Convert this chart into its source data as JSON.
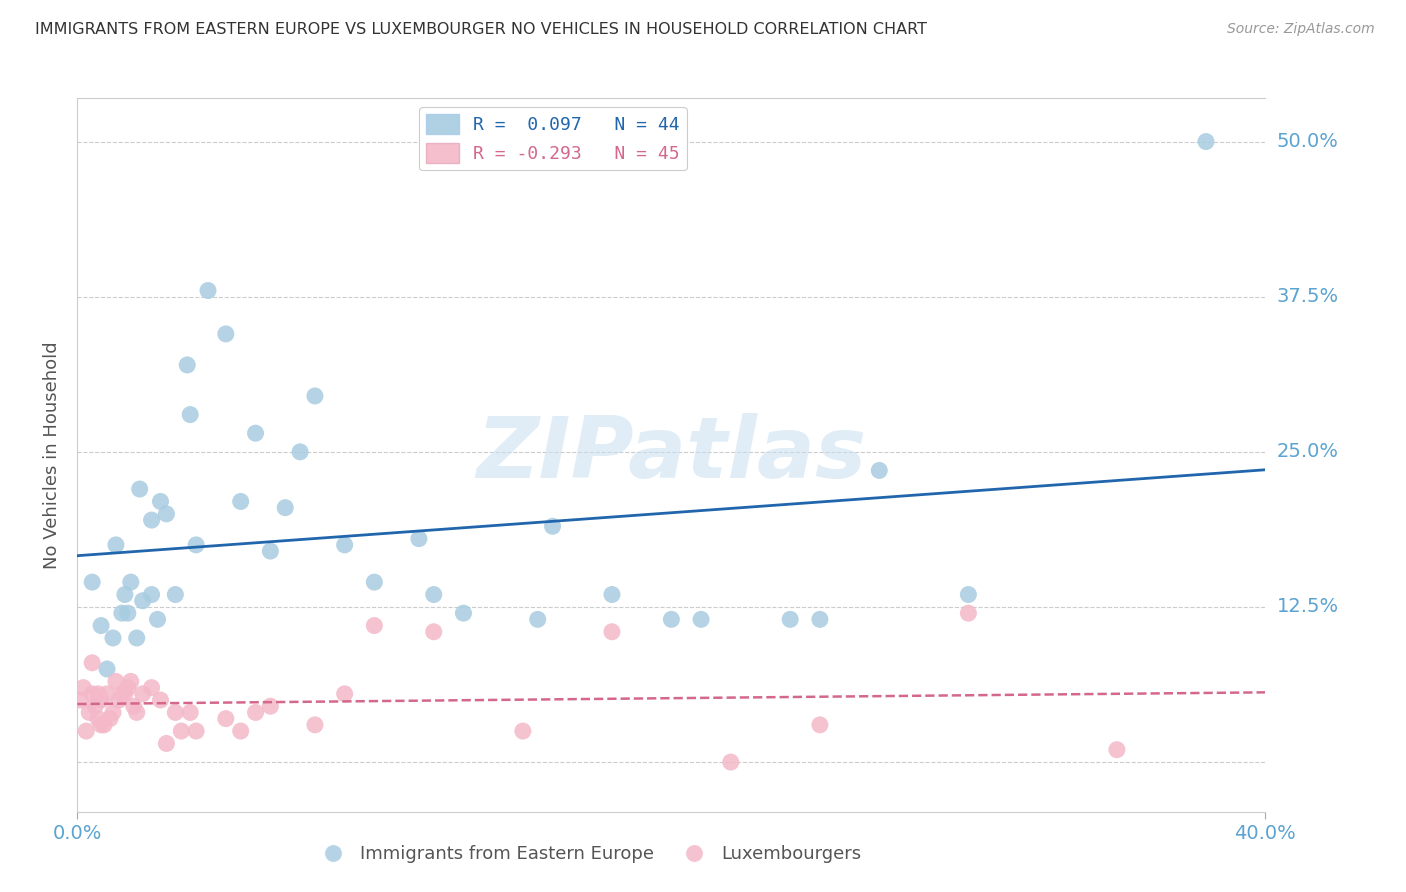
{
  "title": "IMMIGRANTS FROM EASTERN EUROPE VS LUXEMBOURGER NO VEHICLES IN HOUSEHOLD CORRELATION CHART",
  "source": "Source: ZipAtlas.com",
  "ylabel": "No Vehicles in Household",
  "xlim": [
    0.0,
    0.4
  ],
  "ylim": [
    -0.04,
    0.535
  ],
  "yticks": [
    0.0,
    0.125,
    0.25,
    0.375,
    0.5
  ],
  "ytick_labels": [
    "",
    "12.5%",
    "25.0%",
    "37.5%",
    "50.0%"
  ],
  "xticks": [
    0.0,
    0.4
  ],
  "xtick_labels": [
    "0.0%",
    "40.0%"
  ],
  "legend_blue_r": "R =  0.097",
  "legend_blue_n": "N = 44",
  "legend_pink_r": "R = -0.293",
  "legend_pink_n": "N = 45",
  "blue_color": "#a8cce0",
  "pink_color": "#f4b8c8",
  "blue_line_color": "#2166ac",
  "pink_line_color": "#d4688a",
  "grid_color": "#cccccc",
  "axis_label_color": "#5ba3d0",
  "watermark": "ZIPatlas",
  "blue_x": [
    0.005,
    0.008,
    0.01,
    0.012,
    0.013,
    0.015,
    0.016,
    0.017,
    0.018,
    0.02,
    0.021,
    0.022,
    0.025,
    0.025,
    0.027,
    0.028,
    0.03,
    0.033,
    0.037,
    0.038,
    0.04,
    0.044,
    0.05,
    0.055,
    0.06,
    0.065,
    0.07,
    0.075,
    0.08,
    0.09,
    0.1,
    0.115,
    0.12,
    0.13,
    0.155,
    0.16,
    0.18,
    0.2,
    0.21,
    0.24,
    0.25,
    0.27,
    0.3,
    0.38
  ],
  "blue_y": [
    0.145,
    0.11,
    0.075,
    0.1,
    0.175,
    0.12,
    0.135,
    0.12,
    0.145,
    0.1,
    0.22,
    0.13,
    0.135,
    0.195,
    0.115,
    0.21,
    0.2,
    0.135,
    0.32,
    0.28,
    0.175,
    0.38,
    0.345,
    0.21,
    0.265,
    0.17,
    0.205,
    0.25,
    0.295,
    0.175,
    0.145,
    0.18,
    0.135,
    0.12,
    0.115,
    0.19,
    0.135,
    0.115,
    0.115,
    0.115,
    0.115,
    0.235,
    0.135,
    0.5
  ],
  "pink_x": [
    0.001,
    0.002,
    0.003,
    0.004,
    0.005,
    0.005,
    0.006,
    0.007,
    0.007,
    0.008,
    0.008,
    0.009,
    0.01,
    0.011,
    0.012,
    0.013,
    0.014,
    0.015,
    0.016,
    0.017,
    0.018,
    0.019,
    0.02,
    0.022,
    0.025,
    0.028,
    0.03,
    0.033,
    0.035,
    0.038,
    0.04,
    0.05,
    0.055,
    0.06,
    0.065,
    0.08,
    0.09,
    0.1,
    0.12,
    0.15,
    0.18,
    0.22,
    0.25,
    0.3,
    0.35
  ],
  "pink_y": [
    0.05,
    0.06,
    0.025,
    0.04,
    0.08,
    0.055,
    0.045,
    0.055,
    0.035,
    0.05,
    0.03,
    0.03,
    0.055,
    0.035,
    0.04,
    0.065,
    0.05,
    0.055,
    0.055,
    0.06,
    0.065,
    0.045,
    0.04,
    0.055,
    0.06,
    0.05,
    0.015,
    0.04,
    0.025,
    0.04,
    0.025,
    0.035,
    0.025,
    0.04,
    0.045,
    0.03,
    0.055,
    0.11,
    0.105,
    0.025,
    0.105,
    0.0,
    0.03,
    0.12,
    0.01
  ]
}
